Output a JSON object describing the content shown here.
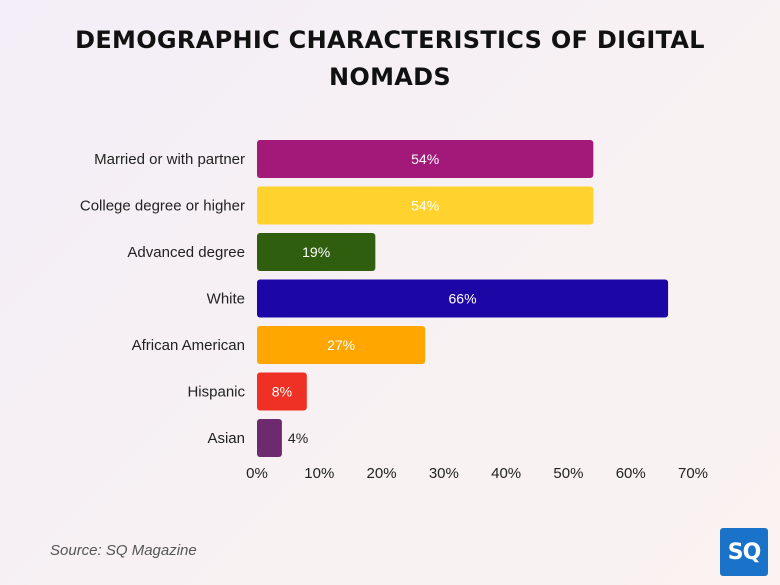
{
  "chart_data": {
    "type": "bar",
    "orientation": "horizontal",
    "title": "DEMOGRAPHIC CHARACTERISTICS OF DIGITAL NOMADS",
    "categories": [
      "Married or with partner",
      "College degree or higher",
      "Advanced degree",
      "White",
      "African American",
      "Hispanic",
      "Asian"
    ],
    "values": [
      54,
      54,
      19,
      66,
      27,
      8,
      4
    ],
    "data_labels": [
      "54%",
      "54%",
      "19%",
      "66%",
      "27%",
      "8%",
      "4%"
    ],
    "colors": [
      "#a3197a",
      "#ffd22e",
      "#2f5f0e",
      "#1d06a6",
      "#ffa600",
      "#ee3124",
      "#6d2a6e"
    ],
    "xlim": [
      0,
      70
    ],
    "xticks": [
      0,
      10,
      20,
      30,
      40,
      50,
      60,
      70
    ],
    "xtick_labels": [
      "0%",
      "10%",
      "20%",
      "30%",
      "40%",
      "50%",
      "60%",
      "70%"
    ],
    "grid": false,
    "legend": "none"
  },
  "source": "Source: SQ Magazine",
  "logo_text": "SQ"
}
